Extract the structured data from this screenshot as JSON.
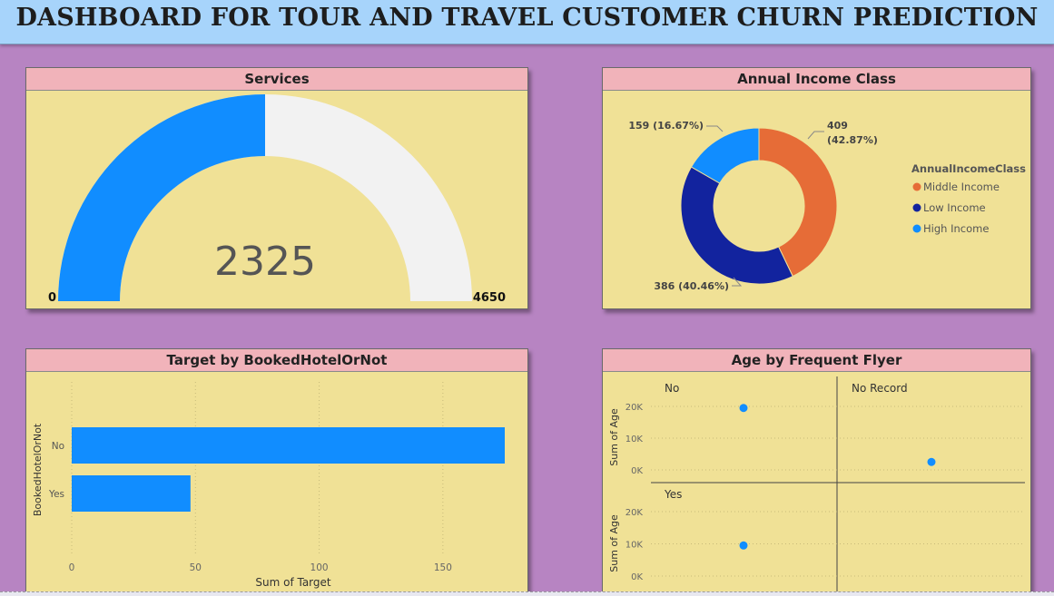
{
  "header": {
    "title": "DASHBOARD FOR TOUR AND TRAVEL CUSTOMER CHURN PREDICTION"
  },
  "colors": {
    "gauge_fill": "#118dff",
    "gauge_track": "#f2f2f2",
    "middle": "#e66c37",
    "low": "#12239e",
    "high": "#118dff",
    "bar": "#118dff",
    "dot": "#118dff"
  },
  "chart_data": [
    {
      "type": "gauge",
      "title": "Services",
      "value": 2325,
      "value_label": "2325",
      "min": 0,
      "max": 4650,
      "min_label": "0",
      "max_label": "4650"
    },
    {
      "type": "pie",
      "title": "Annual Income Class",
      "legend_title": "AnnualIncomeClass",
      "legend_position": "right",
      "donut": true,
      "slices": [
        {
          "name": "Middle Income",
          "value": 409,
          "label1": "409",
          "label2": "(42.87%)",
          "color": "#e66c37"
        },
        {
          "name": "Low Income",
          "value": 386,
          "label1": "386 (40.46%)",
          "label2": "",
          "color": "#12239e"
        },
        {
          "name": "High Income",
          "value": 159,
          "label1": "159 (16.67%)",
          "label2": "",
          "color": "#118dff"
        }
      ]
    },
    {
      "type": "bar",
      "orientation": "horizontal",
      "title": "Target by BookedHotelOrNot",
      "categories": [
        "No",
        "Yes"
      ],
      "values": [
        175,
        48
      ],
      "xlabel": "Sum of Target",
      "ylabel": "BookedHotelOrNot",
      "xlim": [
        0,
        175
      ],
      "xticks": [
        0,
        50,
        100,
        150
      ],
      "xtick_labels": [
        "0",
        "50",
        "100",
        "150"
      ],
      "grid": true
    },
    {
      "type": "scatter",
      "title": "Age by Frequent Flyer",
      "facets": [
        {
          "name": "No",
          "x": 0.5,
          "y": 19500
        },
        {
          "name": "No Record",
          "x": 0.5,
          "y": 2500
        },
        {
          "name": "Yes",
          "x": 0.5,
          "y": 9500
        }
      ],
      "ylabel": "Sum of Age",
      "ylim": [
        0,
        20000
      ],
      "yticks": [
        0,
        10000,
        20000
      ],
      "ytick_labels": [
        "0K",
        "10K",
        "20K"
      ],
      "grid": true
    }
  ]
}
